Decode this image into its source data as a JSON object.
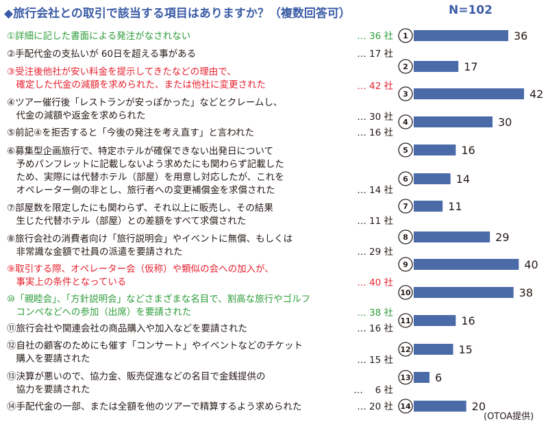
{
  "header": {
    "title": "◆旅行会社との取引で該当する項目はありますか？（複数回答可）",
    "n_label": "N=102"
  },
  "source": "(OTOA提供)",
  "colors": {
    "accent": "#3a5ba6",
    "bar": "#4a6aa8",
    "red": "#e5202e",
    "green": "#2e9d3a"
  },
  "items": [
    {
      "text": "①詳細に記した書面による発注がなされない",
      "count": "… 36 社",
      "color": "green"
    },
    {
      "text": "②手配代金の支払いが 60日を超える事がある",
      "count": "… 17 社",
      "color": "black"
    },
    {
      "text": "③受注後他社が安い料金を提示してきたなどの理由で、\n　確定した代金の減額を求められた、または他社に変更された",
      "count": "… 42 社",
      "color": "red"
    },
    {
      "text": "④ツアー催行後「レストランが安っぽかった」などとクレームし、\n　代金の減額や返金を求められた",
      "count": "… 30 社",
      "color": "black"
    },
    {
      "text": "⑤前記④を拒否すると「今後の発注を考え直す」と言われた",
      "count": "… 16 社",
      "color": "black"
    },
    {
      "text": "⑥募集型企画旅行で、特定ホテルが確保できない出発日について\n　予めパンフレットに記載しないよう求めたにも関わらず記載した\n　ため、実際には代替ホテル（部屋）を用意し対応したが、これを\n　オペレーター側の非とし、旅行者への変更補償金を求償された",
      "count": "… 14 社",
      "color": "black"
    },
    {
      "text": "⑦部屋数を限定したにも関わらず、それ以上に販売し、その結果\n　生じた代替ホテル（部屋）との差額をすべて求償された",
      "count": "… 11 社",
      "color": "black"
    },
    {
      "text": "⑧旅行会社の消費者向け「旅行説明会」やイベントに無償、もしくは\n　非常識な金額で社員の派遣を要請された",
      "count": "… 29 社",
      "color": "black"
    },
    {
      "text": "⑨取引する際、オペレーター会（仮称）や類似の会への加入が、\n　事実上の条件となっている",
      "count": "… 40 社",
      "color": "red"
    },
    {
      "text": "⑩「親睦会」、「方針説明会」などさまざまな名目で、割高な旅行やゴルフ\n　コンペなどへの参加（出席）を要請された",
      "count": "… 38 社",
      "color": "green"
    },
    {
      "text": "⑪旅行会社や関連会社の商品購入や加入などを要請された",
      "count": "… 16 社",
      "color": "black"
    },
    {
      "text": "⑫自社の顧客のためにも催す「コンサート」やイベントなどのチケット\n　購入を要請された",
      "count": "… 15 社",
      "color": "black"
    },
    {
      "text": "⑬決算が悪いので、協力金、販売促進などの名目で金銭提供の\n　協力を要請された",
      "count": "… 　6 社",
      "color": "black"
    },
    {
      "text": "⑭手配代金の一部、または全額を他のツアーで精算するよう求められた",
      "count": "… 20 社",
      "color": "black"
    }
  ],
  "chart_data": {
    "type": "bar",
    "orientation": "horizontal",
    "categories": [
      "①",
      "②",
      "③",
      "④",
      "⑤",
      "⑥",
      "⑦",
      "⑧",
      "⑨",
      "⑩",
      "⑪",
      "⑫",
      "⑬",
      "⑭"
    ],
    "values": [
      36,
      17,
      42,
      30,
      16,
      14,
      11,
      29,
      40,
      38,
      16,
      15,
      6,
      20
    ],
    "title": "◆旅行会社との取引で該当する項目はありますか？（複数回答可）",
    "xlim": [
      0,
      42
    ],
    "grid": false,
    "data_labels": true
  }
}
